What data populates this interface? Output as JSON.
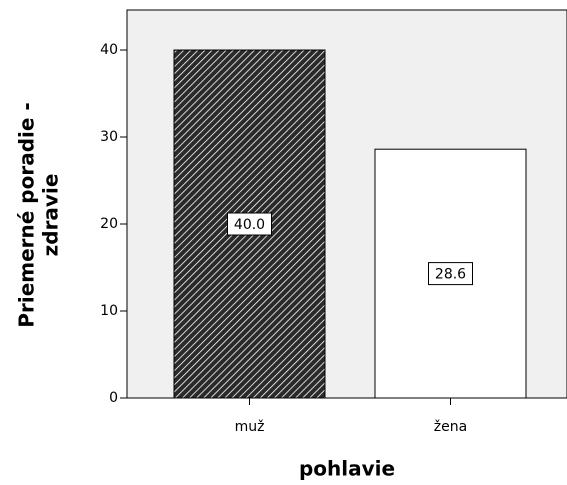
{
  "chart_data": {
    "type": "bar",
    "xlabel": "pohlavie",
    "ylabel": [
      "Priemerné poradie -",
      "zdravie"
    ],
    "categories": [
      "muž",
      "žena"
    ],
    "values": [
      40.0,
      28.6
    ],
    "value_labels": [
      "40.0",
      "28.6"
    ],
    "colors": [
      "#2a2a2a",
      "#ffffff"
    ],
    "hatch": [
      true,
      false
    ],
    "ylim": [
      0,
      44.6
    ],
    "yticks": [
      0,
      10,
      20,
      30,
      40
    ],
    "grid": false
  }
}
